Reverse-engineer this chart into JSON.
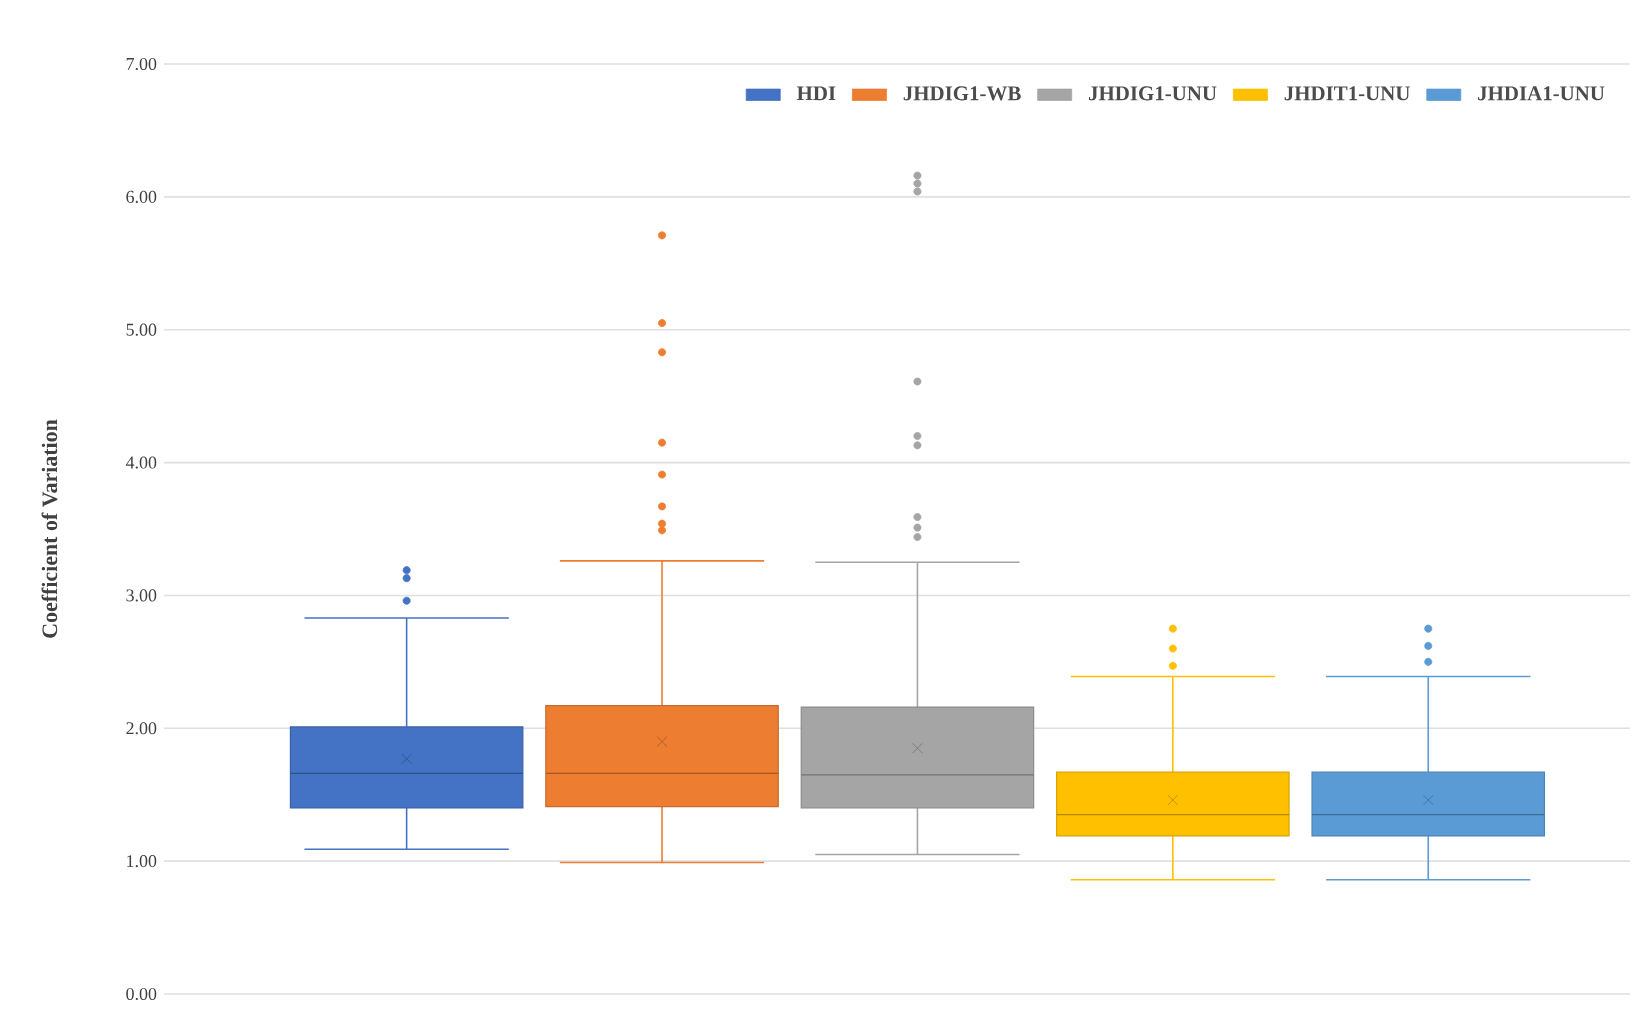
{
  "chart_data": {
    "type": "box",
    "ylabel": "Coefficient of Variation",
    "categories": [
      null
    ],
    "series": [
      {
        "name": "HDI",
        "color": "#4472c4",
        "boxes": [
          {
            "low": 1.09,
            "q1": 1.4,
            "median": 1.66,
            "q3": 2.01,
            "high": 2.83,
            "mean": 1.77,
            "outliers": [
              3.19,
              3.13,
              2.96
            ]
          }
        ]
      },
      {
        "name": "JHDIG1-WB",
        "color": "#ed7d31",
        "boxes": [
          {
            "low": 0.99,
            "q1": 1.41,
            "median": 1.66,
            "q3": 2.17,
            "high": 3.26,
            "mean": 1.9,
            "outliers": [
              5.71,
              5.05,
              4.83,
              4.15,
              3.91,
              3.67,
              3.54,
              3.49
            ]
          }
        ]
      },
      {
        "name": "JHDIG1-UNU",
        "color": "#a5a5a5",
        "boxes": [
          {
            "low": 1.05,
            "q1": 1.4,
            "median": 1.65,
            "q3": 2.16,
            "high": 3.25,
            "mean": 1.85,
            "outliers": [
              6.16,
              6.1,
              6.04,
              4.61,
              4.2,
              4.13,
              3.59,
              3.51,
              3.44
            ]
          }
        ]
      },
      {
        "name": "JHDIT1-UNU",
        "color": "#ffc000",
        "boxes": [
          {
            "low": 0.86,
            "q1": 1.19,
            "median": 1.35,
            "q3": 1.67,
            "high": 2.39,
            "mean": 1.46,
            "outliers": [
              2.75,
              2.6,
              2.47
            ]
          }
        ]
      },
      {
        "name": "JHDIA1-UNU",
        "color": "#5b9bd5",
        "boxes": [
          {
            "low": 0.86,
            "q1": 1.19,
            "median": 1.35,
            "q3": 1.67,
            "high": 2.39,
            "mean": 1.46,
            "outliers": [
              2.75,
              2.62,
              2.5
            ]
          }
        ]
      }
    ],
    "ylim": [
      0,
      7
    ],
    "yticks": [
      {
        "value": 0,
        "label": "0.00"
      },
      {
        "value": 1,
        "label": "1.00"
      },
      {
        "value": 2,
        "label": "2.00"
      },
      {
        "value": 3,
        "label": "3.00"
      },
      {
        "value": 4,
        "label": "4.00"
      },
      {
        "value": 5,
        "label": "5.00"
      },
      {
        "value": 6,
        "label": "6.00"
      },
      {
        "value": 7,
        "label": "7.00"
      }
    ],
    "grid": "y",
    "legend": "top right"
  }
}
